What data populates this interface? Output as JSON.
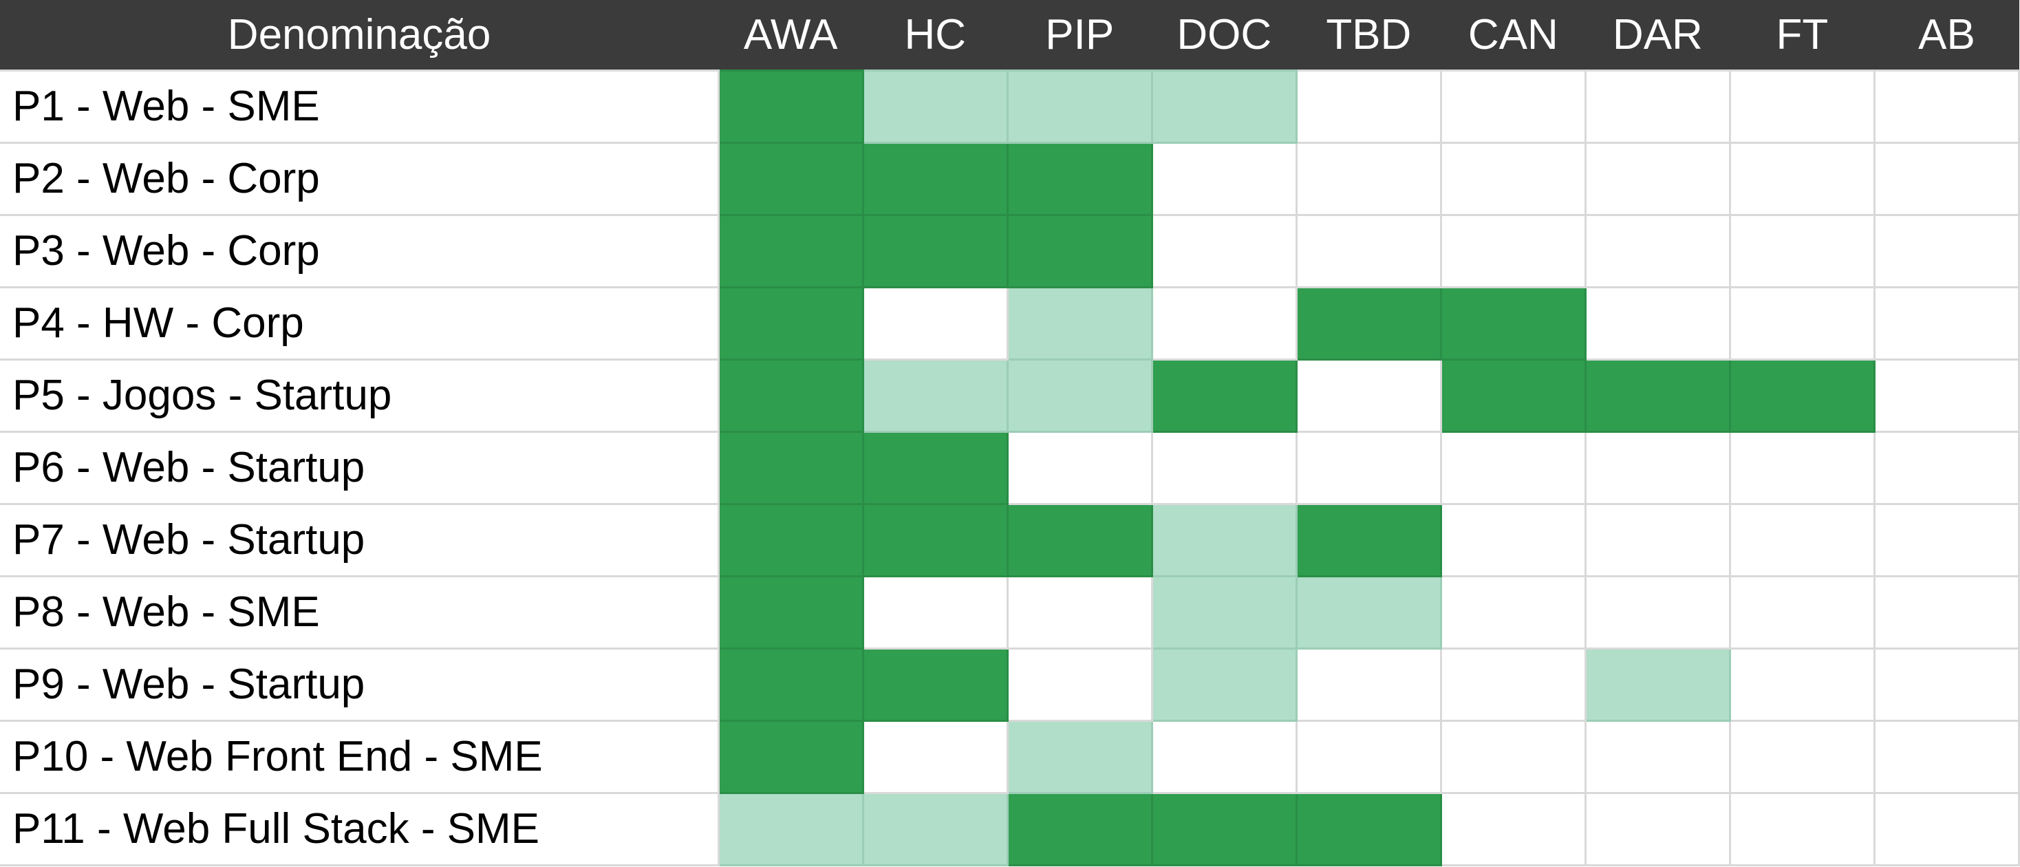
{
  "sheet": {
    "name_header": "Denominação",
    "columns": [
      "AWA",
      "HC",
      "PIP",
      "DOC",
      "TBD",
      "CAN",
      "DAR",
      "FT",
      "AB"
    ],
    "legend_colors": {
      "0": "#ffffff",
      "1": "#b0dec8",
      "2": "#2f9e4f"
    },
    "rows": [
      {
        "name": "P1 - Web - SME",
        "levels": [
          2,
          1,
          1,
          1,
          0,
          0,
          0,
          0,
          0
        ]
      },
      {
        "name": "P2 - Web - Corp",
        "levels": [
          2,
          2,
          2,
          0,
          0,
          0,
          0,
          0,
          0
        ]
      },
      {
        "name": "P3 - Web - Corp",
        "levels": [
          2,
          2,
          2,
          0,
          0,
          0,
          0,
          0,
          0
        ]
      },
      {
        "name": "P4 - HW - Corp",
        "levels": [
          2,
          0,
          1,
          0,
          2,
          2,
          0,
          0,
          0
        ]
      },
      {
        "name": "P5 - Jogos - Startup",
        "levels": [
          2,
          1,
          1,
          2,
          0,
          2,
          2,
          2,
          0
        ]
      },
      {
        "name": "P6 - Web - Startup",
        "levels": [
          2,
          2,
          0,
          0,
          0,
          0,
          0,
          0,
          0
        ]
      },
      {
        "name": "P7 - Web - Startup",
        "levels": [
          2,
          2,
          2,
          1,
          2,
          0,
          0,
          0,
          0
        ]
      },
      {
        "name": "P8 - Web - SME",
        "levels": [
          2,
          0,
          0,
          1,
          1,
          0,
          0,
          0,
          0
        ]
      },
      {
        "name": "P9 - Web - Startup",
        "levels": [
          2,
          2,
          0,
          1,
          0,
          0,
          1,
          0,
          0
        ]
      },
      {
        "name": "P10 - Web Front End - SME",
        "levels": [
          2,
          0,
          1,
          0,
          0,
          0,
          0,
          0,
          0
        ]
      },
      {
        "name": "P11 - Web Full Stack - SME",
        "levels": [
          1,
          1,
          2,
          2,
          2,
          0,
          0,
          0,
          0
        ]
      }
    ]
  }
}
